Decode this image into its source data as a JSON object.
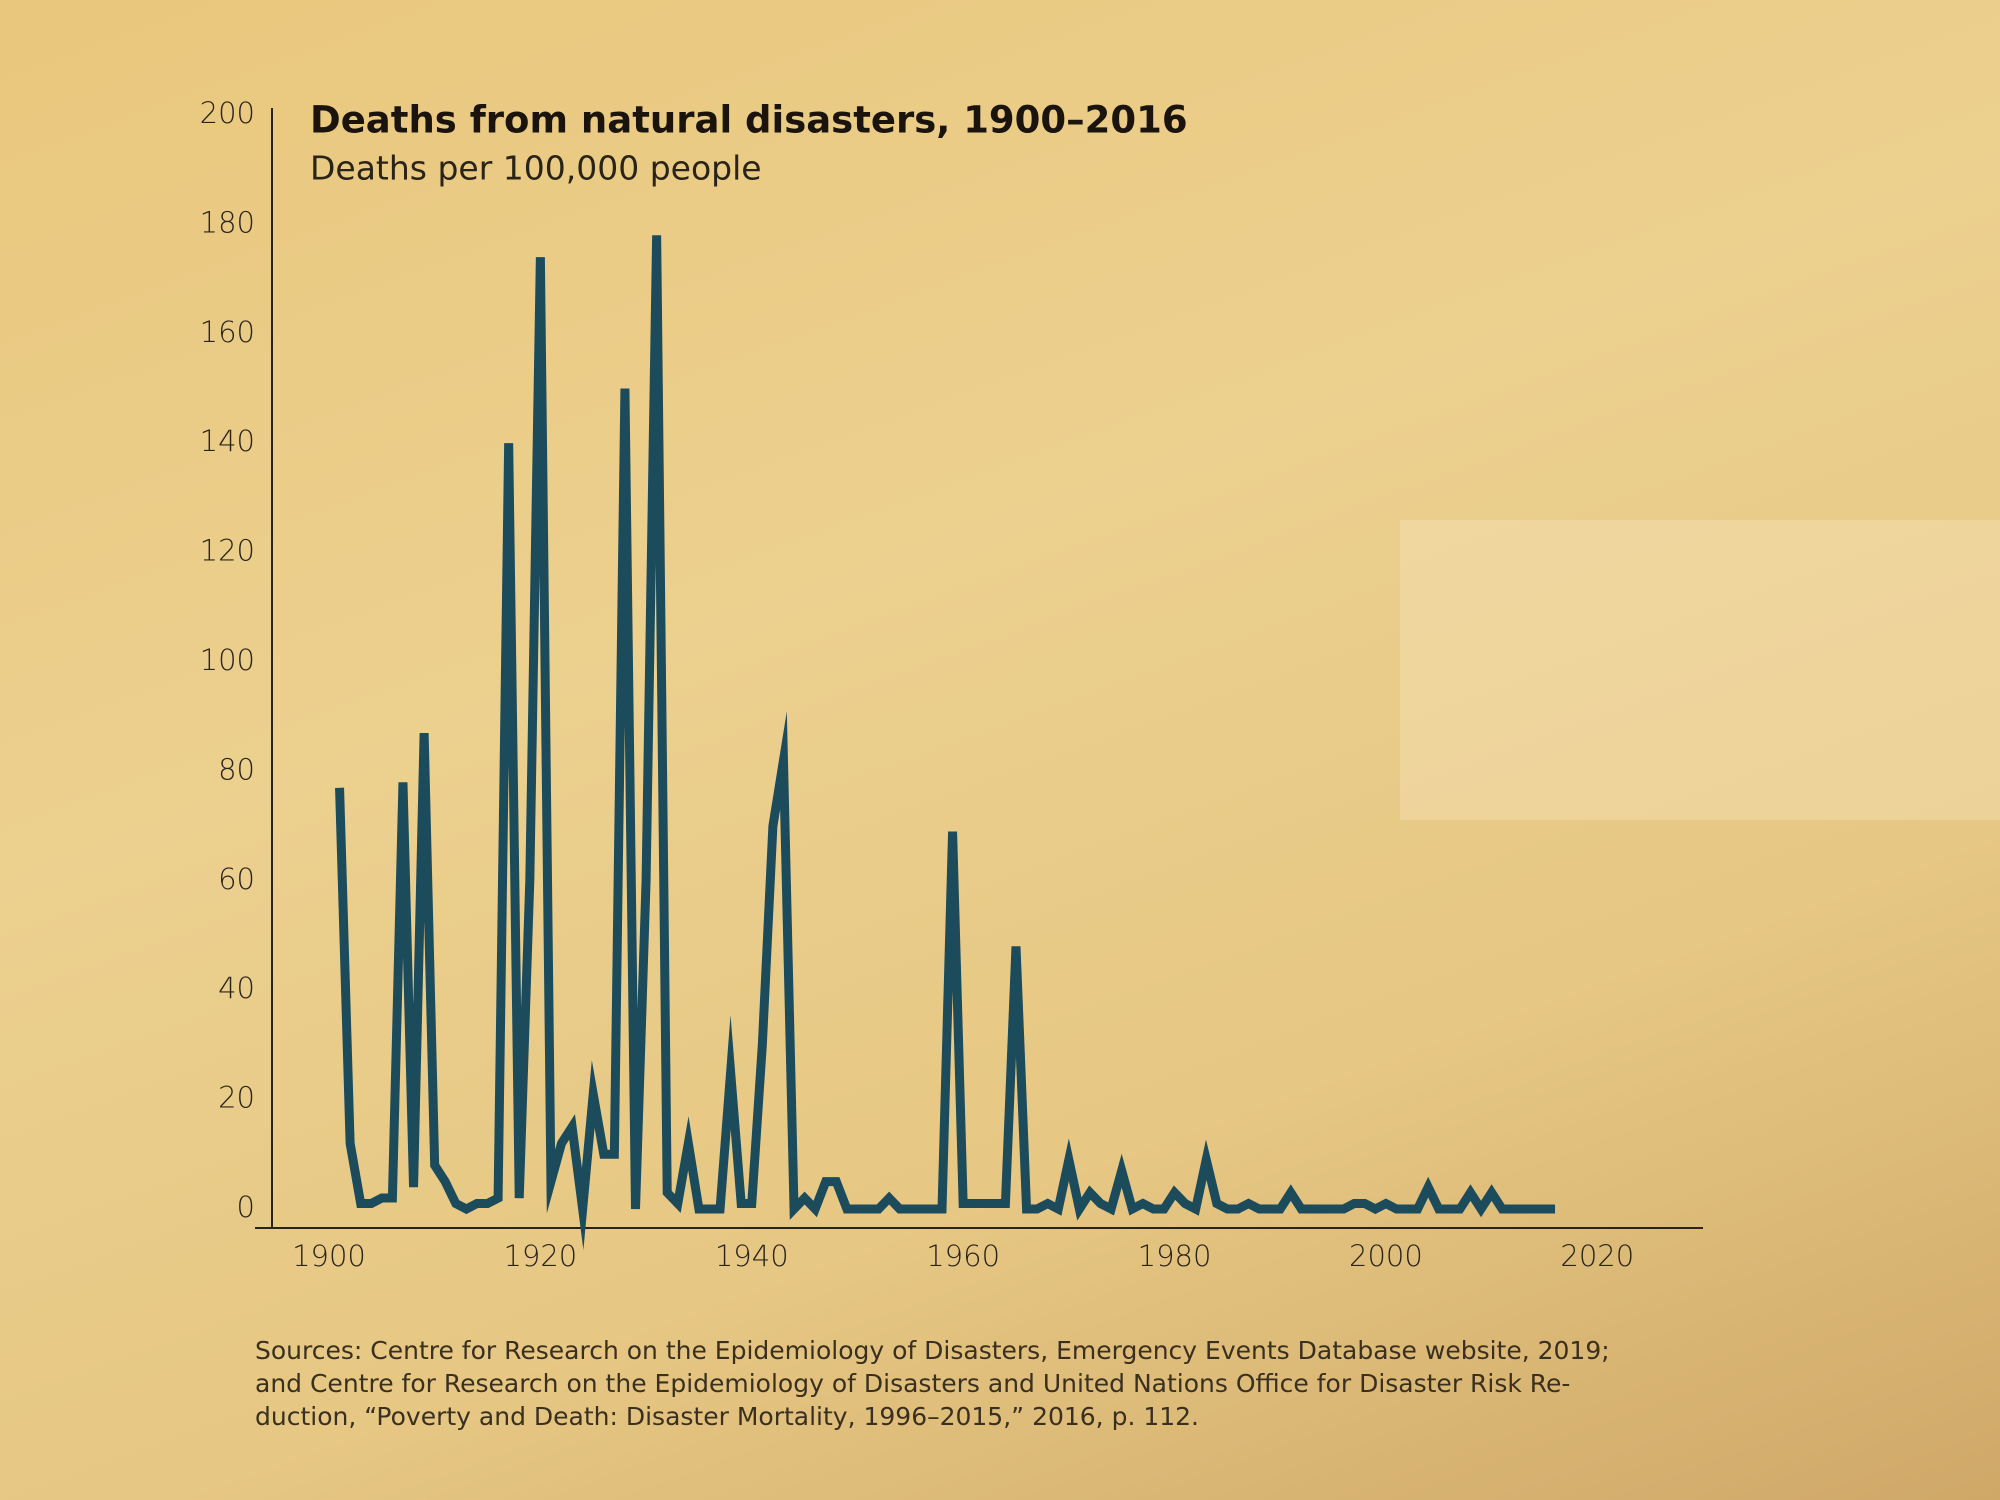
{
  "chart_data": {
    "type": "line",
    "title": "Deaths from natural disasters, 1900–2016",
    "subtitle": "Deaths per 100,000 people",
    "source": [
      "Sources: Centre for Research on the Epidemiology of Disasters, Emergency Events Database website, 2019;",
      "and Centre for Research on the Epidemiology of Disasters and United Nations Office for Disaster Risk Re-",
      "duction, “Poverty and Death: Disaster Mortality, 1996–2015,” 2016, p. 112."
    ],
    "color": "#1c4b5c",
    "x": [
      1901,
      1902,
      1903,
      1904,
      1905,
      1906,
      1907,
      1908,
      1909,
      1910,
      1911,
      1912,
      1913,
      1914,
      1915,
      1916,
      1917,
      1918,
      1919,
      1920,
      1921,
      1922,
      1923,
      1924,
      1925,
      1926,
      1927,
      1928,
      1929,
      1930,
      1931,
      1932,
      1933,
      1934,
      1935,
      1936,
      1937,
      1938,
      1939,
      1940,
      1941,
      1942,
      1943,
      1944,
      1945,
      1946,
      1947,
      1948,
      1949,
      1950,
      1951,
      1952,
      1953,
      1954,
      1955,
      1956,
      1957,
      1958,
      1959,
      1960,
      1961,
      1962,
      1963,
      1964,
      1965,
      1966,
      1967,
      1968,
      1969,
      1970,
      1971,
      1972,
      1973,
      1974,
      1975,
      1976,
      1977,
      1978,
      1979,
      1980,
      1981,
      1982,
      1983,
      1984,
      1985,
      1986,
      1987,
      1988,
      1989,
      1990,
      1991,
      1992,
      1993,
      1994,
      1995,
      1996,
      1997,
      1998,
      1999,
      2000,
      2001,
      2002,
      2003,
      2004,
      2005,
      2006,
      2007,
      2008,
      2009,
      2010,
      2011,
      2012,
      2013,
      2014,
      2015,
      2016
    ],
    "values": [
      77,
      12,
      1,
      1,
      2,
      2,
      78,
      4,
      87,
      8,
      5,
      1,
      0,
      1,
      1,
      2,
      140,
      2,
      60,
      174,
      5,
      12,
      15,
      0,
      21,
      10,
      10,
      150,
      0,
      60,
      178,
      3,
      1,
      12,
      0,
      0,
      0,
      25,
      1,
      1,
      30,
      70,
      82,
      0,
      2,
      0,
      5,
      5,
      0,
      0,
      0,
      0,
      2,
      0,
      0,
      0,
      0,
      0,
      69,
      1,
      1,
      1,
      1,
      1,
      48,
      0,
      0,
      1,
      0,
      9,
      0,
      3,
      1,
      0,
      7,
      0,
      1,
      0,
      0,
      3,
      1,
      0,
      9,
      1,
      0,
      0,
      1,
      0,
      0,
      0,
      3,
      0,
      0,
      0,
      0,
      0,
      1,
      1,
      0,
      1,
      0,
      0,
      0,
      4,
      0,
      0,
      0,
      3,
      0,
      3,
      0,
      0,
      0,
      0,
      0,
      0
    ],
    "xlim": [
      1893,
      2030
    ],
    "ylim": [
      0,
      200
    ],
    "xticks": [
      1900,
      1920,
      1940,
      1960,
      1980,
      2000,
      2020
    ],
    "yticks": [
      0,
      20,
      40,
      60,
      80,
      100,
      120,
      140,
      160,
      180,
      200
    ]
  }
}
